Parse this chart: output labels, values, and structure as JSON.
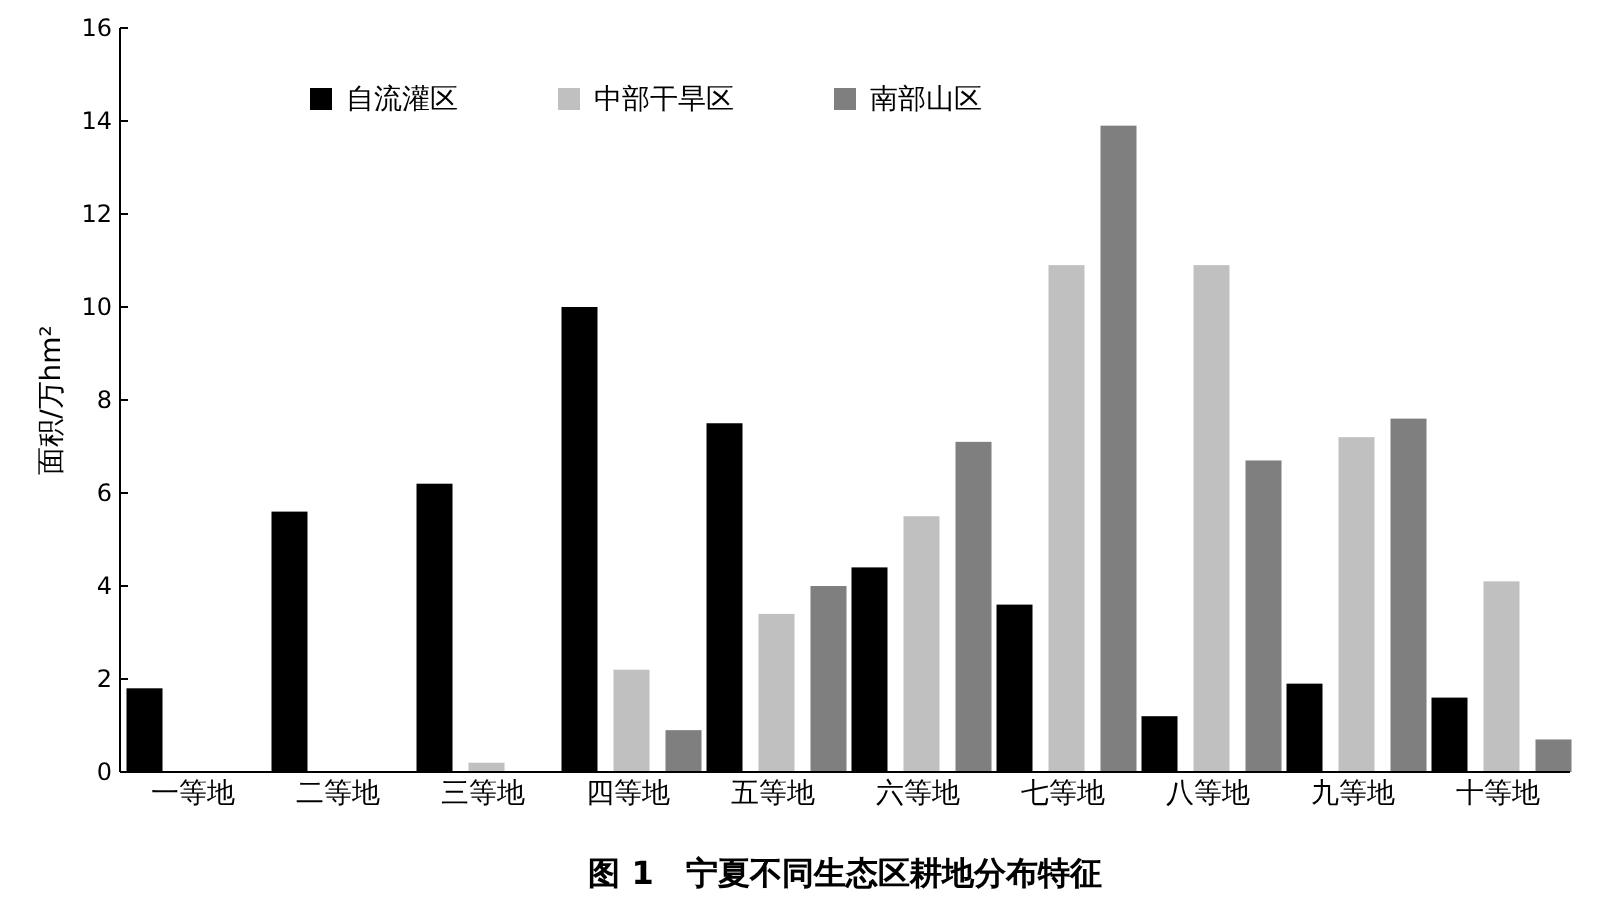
{
  "chart_data": {
    "type": "bar",
    "title": "图 1　宁夏不同生态区耕地分布特征",
    "ylabel": "面积/万hm²",
    "categories": [
      "一等地",
      "二等地",
      "三等地",
      "四等地",
      "五等地",
      "六等地",
      "七等地",
      "八等地",
      "九等地",
      "十等地"
    ],
    "series": [
      {
        "name": "自流灌区",
        "color": "#000000",
        "values": [
          1.8,
          5.6,
          6.2,
          10.0,
          7.5,
          4.4,
          3.6,
          1.2,
          1.9,
          1.6
        ]
      },
      {
        "name": "中部干旱区",
        "color": "#c0c0c0",
        "values": [
          null,
          null,
          0.2,
          2.2,
          3.4,
          5.5,
          10.9,
          10.9,
          7.2,
          4.1
        ]
      },
      {
        "name": "南部山区",
        "color": "#7f7f7f",
        "values": [
          null,
          null,
          null,
          0.9,
          4.0,
          7.1,
          13.9,
          6.7,
          7.6,
          0.7
        ]
      }
    ],
    "ylim": [
      0,
      16
    ],
    "yticks": [
      0,
      2,
      4,
      6,
      8,
      10,
      12,
      14,
      16
    ],
    "grid": false,
    "legend": "top"
  }
}
